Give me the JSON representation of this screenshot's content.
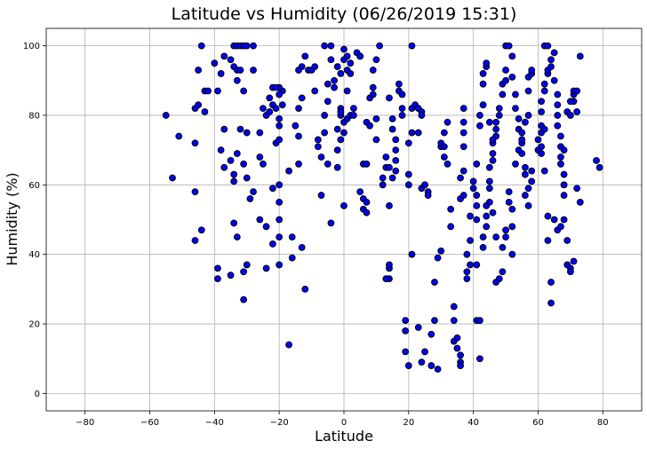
{
  "chart_data": {
    "type": "scatter",
    "title": "Latitude vs Humidity (06/26/2019 15:31)",
    "xlabel": "Latitude",
    "ylabel": "Humidity (%)",
    "xlim": [
      -92,
      92
    ],
    "ylim": [
      -5,
      105
    ],
    "xticks": [
      -80,
      -60,
      -40,
      -20,
      0,
      20,
      40,
      60,
      80
    ],
    "yticks": [
      0,
      20,
      40,
      60,
      80,
      100
    ],
    "grid": true,
    "marker_color": "#0000ff",
    "marker_edge_color": "#000000",
    "points": [
      [
        -55,
        80
      ],
      [
        -53,
        62
      ],
      [
        -51,
        74
      ],
      [
        -46,
        72
      ],
      [
        -46,
        82
      ],
      [
        -45,
        83
      ],
      [
        -45,
        93
      ],
      [
        -46,
        58
      ],
      [
        -46,
        44
      ],
      [
        -44,
        47
      ],
      [
        -43,
        81
      ],
      [
        -43,
        87
      ],
      [
        -42,
        87
      ],
      [
        -44,
        100
      ],
      [
        -40,
        95
      ],
      [
        -39,
        87
      ],
      [
        -38,
        92
      ],
      [
        -37,
        97
      ],
      [
        -37,
        76
      ],
      [
        -38,
        70
      ],
      [
        -39,
        36
      ],
      [
        -39,
        33
      ],
      [
        -37,
        65
      ],
      [
        -35,
        34
      ],
      [
        -35,
        67
      ],
      [
        -34,
        61
      ],
      [
        -34,
        49
      ],
      [
        -33,
        45
      ],
      [
        -34,
        63
      ],
      [
        -33,
        69
      ],
      [
        -34,
        100
      ],
      [
        -33,
        100
      ],
      [
        -32,
        100
      ],
      [
        -31,
        100
      ],
      [
        -30,
        100
      ],
      [
        -28,
        100
      ],
      [
        -35,
        96
      ],
      [
        -34,
        94
      ],
      [
        -33,
        93
      ],
      [
        -32,
        93
      ],
      [
        -33,
        90
      ],
      [
        -31,
        87
      ],
      [
        -32,
        76
      ],
      [
        -30,
        75
      ],
      [
        -31,
        66
      ],
      [
        -30,
        62
      ],
      [
        -31,
        35
      ],
      [
        -30,
        37
      ],
      [
        -31,
        27
      ],
      [
        -29,
        56
      ],
      [
        -28,
        58
      ],
      [
        -28,
        93
      ],
      [
        -26,
        75
      ],
      [
        -26,
        68
      ],
      [
        -25,
        66
      ],
      [
        -26,
        50
      ],
      [
        -24,
        48
      ],
      [
        -24,
        36
      ],
      [
        -25,
        82
      ],
      [
        -24,
        80
      ],
      [
        -23,
        81
      ],
      [
        -23,
        85
      ],
      [
        -22,
        88
      ],
      [
        -22,
        83
      ],
      [
        -21,
        82
      ],
      [
        -21,
        72
      ],
      [
        -20,
        73
      ],
      [
        -20,
        77
      ],
      [
        -20,
        79
      ],
      [
        -19,
        87
      ],
      [
        -20,
        88
      ],
      [
        -21,
        88
      ],
      [
        -20,
        86
      ],
      [
        -19,
        83
      ],
      [
        -22,
        59
      ],
      [
        -20,
        60
      ],
      [
        -20,
        55
      ],
      [
        -20,
        50
      ],
      [
        -20,
        45
      ],
      [
        -20,
        37
      ],
      [
        -22,
        43
      ],
      [
        -17,
        64
      ],
      [
        -17,
        14
      ],
      [
        -16,
        45
      ],
      [
        -16,
        39
      ],
      [
        -15,
        77
      ],
      [
        -14,
        74
      ],
      [
        -14,
        82
      ],
      [
        -13,
        85
      ],
      [
        -13,
        94
      ],
      [
        -14,
        93
      ],
      [
        -12,
        97
      ],
      [
        -11,
        93
      ],
      [
        -10,
        93
      ],
      [
        -14,
        66
      ],
      [
        -13,
        42
      ],
      [
        -12,
        30
      ],
      [
        -9,
        94
      ],
      [
        -9,
        87
      ],
      [
        -8,
        73
      ],
      [
        -8,
        71
      ],
      [
        -7,
        57
      ],
      [
        -7,
        68
      ],
      [
        -6,
        75
      ],
      [
        -6,
        80
      ],
      [
        -5,
        84
      ],
      [
        -5,
        89
      ],
      [
        -6,
        100
      ],
      [
        -4,
        100
      ],
      [
        -4,
        96
      ],
      [
        -3,
        90
      ],
      [
        -3,
        88
      ],
      [
        -2,
        70
      ],
      [
        -2,
        76
      ],
      [
        -1,
        73
      ],
      [
        -1,
        82
      ],
      [
        -4,
        49
      ],
      [
        -5,
        66
      ],
      [
        -2,
        65
      ],
      [
        -2,
        94
      ],
      [
        -1,
        92
      ],
      [
        0,
        96
      ],
      [
        0,
        99
      ],
      [
        1,
        97
      ],
      [
        1,
        93
      ],
      [
        2,
        95
      ],
      [
        0,
        54
      ],
      [
        0,
        75
      ],
      [
        0,
        78
      ],
      [
        1,
        79
      ],
      [
        2,
        80
      ],
      [
        3,
        80
      ],
      [
        2,
        92
      ],
      [
        1,
        87
      ],
      [
        3,
        82
      ],
      [
        -1,
        80
      ],
      [
        -1,
        81
      ],
      [
        4,
        98
      ],
      [
        5,
        97
      ],
      [
        5,
        97
      ],
      [
        5,
        58
      ],
      [
        6,
        56
      ],
      [
        6,
        53
      ],
      [
        7,
        52
      ],
      [
        7,
        55
      ],
      [
        6,
        66
      ],
      [
        7,
        66
      ],
      [
        7,
        78
      ],
      [
        8,
        77
      ],
      [
        8,
        85
      ],
      [
        9,
        86
      ],
      [
        9,
        88
      ],
      [
        9,
        93
      ],
      [
        10,
        96
      ],
      [
        11,
        100
      ],
      [
        10,
        73
      ],
      [
        10,
        79
      ],
      [
        12,
        60
      ],
      [
        12,
        62
      ],
      [
        13,
        65
      ],
      [
        13,
        68
      ],
      [
        14,
        65
      ],
      [
        14,
        85
      ],
      [
        15,
        79
      ],
      [
        15,
        76
      ],
      [
        16,
        70
      ],
      [
        16,
        73
      ],
      [
        17,
        87
      ],
      [
        17,
        89
      ],
      [
        18,
        86
      ],
      [
        18,
        80
      ],
      [
        18,
        82
      ],
      [
        14,
        54
      ],
      [
        14,
        36
      ],
      [
        14,
        37
      ],
      [
        14,
        33
      ],
      [
        13,
        33
      ],
      [
        15,
        62
      ],
      [
        16,
        64
      ],
      [
        16,
        67
      ],
      [
        19,
        21
      ],
      [
        19,
        18
      ],
      [
        20,
        8
      ],
      [
        19,
        12
      ],
      [
        20,
        60
      ],
      [
        20,
        63
      ],
      [
        20,
        72
      ],
      [
        21,
        75
      ],
      [
        21,
        82
      ],
      [
        21,
        100
      ],
      [
        22,
        83
      ],
      [
        23,
        82
      ],
      [
        23,
        75
      ],
      [
        24,
        81
      ],
      [
        24,
        80
      ],
      [
        24,
        59
      ],
      [
        25,
        60
      ],
      [
        26,
        58
      ],
      [
        26,
        57
      ],
      [
        21,
        40
      ],
      [
        23,
        19
      ],
      [
        24,
        9
      ],
      [
        25,
        12
      ],
      [
        27,
        8
      ],
      [
        27,
        17
      ],
      [
        28,
        21
      ],
      [
        29,
        7
      ],
      [
        28,
        32
      ],
      [
        29,
        39
      ],
      [
        30,
        41
      ],
      [
        30,
        71
      ],
      [
        30,
        72
      ],
      [
        31,
        68
      ],
      [
        31,
        71
      ],
      [
        31,
        75
      ],
      [
        32,
        78
      ],
      [
        32,
        66
      ],
      [
        33,
        53
      ],
      [
        33,
        48
      ],
      [
        34,
        25
      ],
      [
        34,
        21
      ],
      [
        34,
        15
      ],
      [
        35,
        16
      ],
      [
        35,
        13
      ],
      [
        36,
        9
      ],
      [
        36,
        8
      ],
      [
        36,
        11
      ],
      [
        36,
        56
      ],
      [
        36,
        62
      ],
      [
        37,
        57
      ],
      [
        37,
        64
      ],
      [
        37,
        71
      ],
      [
        37,
        75
      ],
      [
        37,
        78
      ],
      [
        37,
        82
      ],
      [
        38,
        35
      ],
      [
        38,
        33
      ],
      [
        39,
        37
      ],
      [
        38,
        40
      ],
      [
        39,
        44
      ],
      [
        39,
        51
      ],
      [
        40,
        59
      ],
      [
        40,
        61
      ],
      [
        41,
        66
      ],
      [
        41,
        57
      ],
      [
        41,
        54
      ],
      [
        41,
        50
      ],
      [
        41,
        37
      ],
      [
        41,
        21
      ],
      [
        42,
        10
      ],
      [
        42,
        21
      ],
      [
        43,
        42
      ],
      [
        43,
        45
      ],
      [
        44,
        48
      ],
      [
        44,
        51
      ],
      [
        44,
        54
      ],
      [
        45,
        55
      ],
      [
        45,
        59
      ],
      [
        45,
        61
      ],
      [
        45,
        65
      ],
      [
        46,
        67
      ],
      [
        46,
        69
      ],
      [
        46,
        72
      ],
      [
        47,
        74
      ],
      [
        47,
        76
      ],
      [
        47,
        78
      ],
      [
        48,
        80
      ],
      [
        48,
        82
      ],
      [
        49,
        86
      ],
      [
        49,
        89
      ],
      [
        50,
        90
      ],
      [
        50,
        93
      ],
      [
        50,
        100
      ],
      [
        51,
        100
      ],
      [
        52,
        97
      ],
      [
        52,
        91
      ],
      [
        53,
        86
      ],
      [
        53,
        82
      ],
      [
        54,
        79
      ],
      [
        54,
        76
      ],
      [
        55,
        72
      ],
      [
        55,
        69
      ],
      [
        56,
        65
      ],
      [
        56,
        63
      ],
      [
        56,
        57
      ],
      [
        57,
        54
      ],
      [
        57,
        59
      ],
      [
        58,
        61
      ],
      [
        58,
        64
      ],
      [
        42,
        77
      ],
      [
        42,
        80
      ],
      [
        43,
        83
      ],
      [
        43,
        89
      ],
      [
        44,
        94
      ],
      [
        44,
        95
      ],
      [
        43,
        92
      ],
      [
        45,
        78
      ],
      [
        46,
        73
      ],
      [
        46,
        52
      ],
      [
        47,
        45
      ],
      [
        47,
        32
      ],
      [
        48,
        33
      ],
      [
        49,
        35
      ],
      [
        49,
        42
      ],
      [
        50,
        45
      ],
      [
        50,
        47
      ],
      [
        51,
        55
      ],
      [
        51,
        58
      ],
      [
        52,
        40
      ],
      [
        52,
        48
      ],
      [
        52,
        53
      ],
      [
        53,
        66
      ],
      [
        54,
        70
      ],
      [
        55,
        73
      ],
      [
        55,
        75
      ],
      [
        56,
        78
      ],
      [
        57,
        80
      ],
      [
        57,
        87
      ],
      [
        57,
        91
      ],
      [
        58,
        92
      ],
      [
        58,
        93
      ],
      [
        60,
        70
      ],
      [
        60,
        73
      ],
      [
        61,
        69
      ],
      [
        61,
        71
      ],
      [
        61,
        75
      ],
      [
        61,
        77
      ],
      [
        61,
        81
      ],
      [
        61,
        84
      ],
      [
        62,
        87
      ],
      [
        62,
        89
      ],
      [
        62,
        100
      ],
      [
        63,
        100
      ],
      [
        63,
        92
      ],
      [
        63,
        93
      ],
      [
        64,
        94
      ],
      [
        64,
        96
      ],
      [
        65,
        98
      ],
      [
        65,
        90
      ],
      [
        66,
        86
      ],
      [
        66,
        83
      ],
      [
        66,
        80
      ],
      [
        66,
        77
      ],
      [
        67,
        74
      ],
      [
        67,
        71
      ],
      [
        67,
        68
      ],
      [
        67,
        66
      ],
      [
        68,
        63
      ],
      [
        68,
        60
      ],
      [
        68,
        57
      ],
      [
        68,
        50
      ],
      [
        69,
        44
      ],
      [
        69,
        37
      ],
      [
        70,
        36
      ],
      [
        70,
        35
      ],
      [
        71,
        38
      ],
      [
        71,
        84
      ],
      [
        71,
        86
      ],
      [
        71,
        87
      ],
      [
        72,
        81
      ],
      [
        72,
        59
      ],
      [
        73,
        55
      ],
      [
        73,
        97
      ],
      [
        62,
        76
      ],
      [
        62,
        64
      ],
      [
        63,
        51
      ],
      [
        63,
        44
      ],
      [
        64,
        32
      ],
      [
        64,
        26
      ],
      [
        65,
        50
      ],
      [
        66,
        47
      ],
      [
        67,
        48
      ],
      [
        68,
        70
      ],
      [
        69,
        81
      ],
      [
        70,
        80
      ],
      [
        70,
        84
      ],
      [
        72,
        87
      ],
      [
        78,
        67
      ],
      [
        79,
        65
      ]
    ]
  }
}
